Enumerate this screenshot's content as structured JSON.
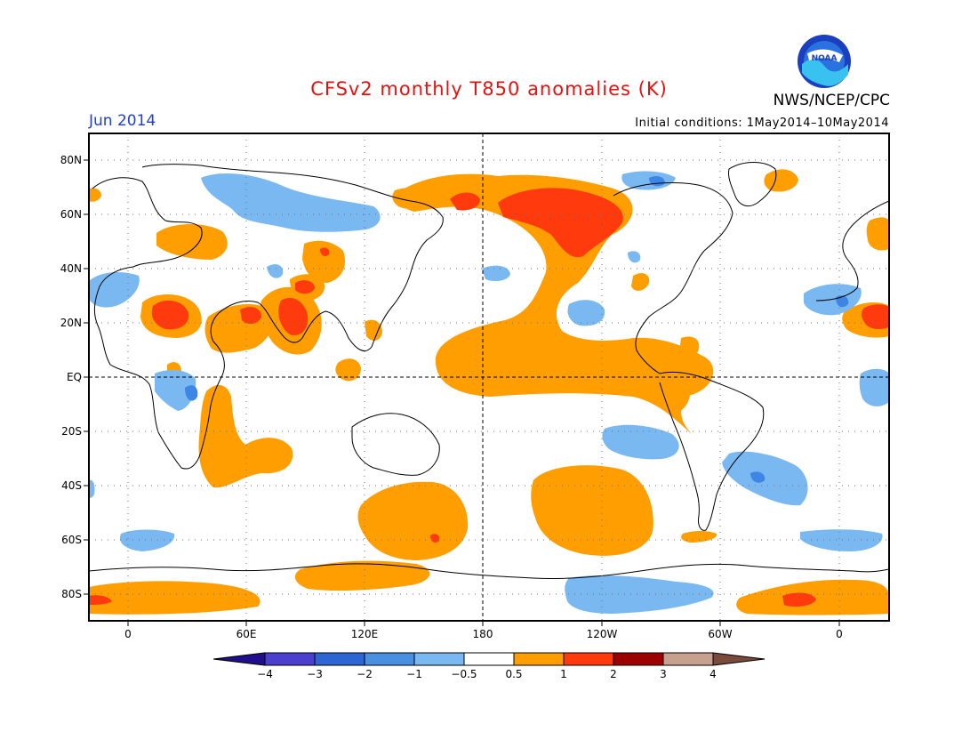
{
  "header": {
    "title": "CFSv2 monthly T850 anomalies (K)",
    "org": "NWS/NCEP/CPC",
    "month": "Jun 2014",
    "initial_conditions": "Initial conditions: 1May2014–10May2014",
    "logo_text": "NOAA"
  },
  "map": {
    "projection": "cylindrical-equidistant",
    "lon_ticks": [
      "0",
      "60E",
      "120E",
      "180",
      "120W",
      "60W",
      "0"
    ],
    "lat_ticks": [
      "80N",
      "60N",
      "40N",
      "20N",
      "EQ",
      "20S",
      "40S",
      "60S",
      "80S"
    ],
    "reference_lines": [
      "EQ",
      "180"
    ],
    "grid": "dotted",
    "field_colors": {
      "strong_warm": "#ff3a0c",
      "warm": "#ff9e00",
      "cool": "#7ab8f2",
      "strong_cool": "#3d86e6"
    }
  },
  "colorbar": {
    "colors": [
      "#1f0f8c",
      "#4a3fcf",
      "#2d66d4",
      "#4a90e2",
      "#7ab8f2",
      "#ffffff",
      "#ff9e00",
      "#ff3a0c",
      "#9c0000",
      "#c8a090",
      "#7a4a3a"
    ],
    "labels": [
      "−4",
      "−3",
      "−2",
      "−1",
      "−0.5",
      "0.5",
      "1",
      "2",
      "3",
      "4"
    ]
  }
}
